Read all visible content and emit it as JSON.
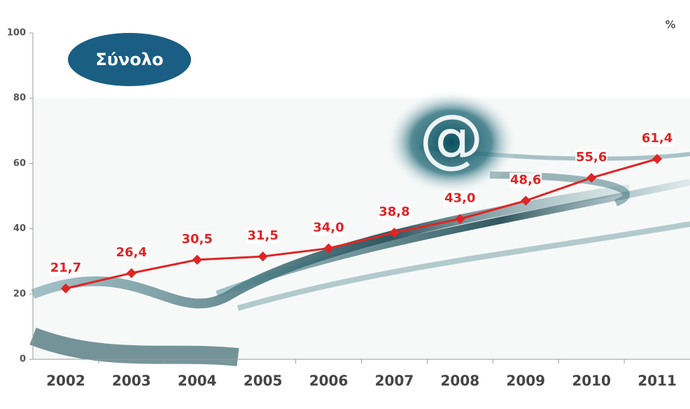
{
  "chart_data": {
    "type": "line",
    "title": "Σύνολο",
    "y_unit": "%",
    "categories": [
      "2002",
      "2003",
      "2004",
      "2005",
      "2006",
      "2007",
      "2008",
      "2009",
      "2010",
      "2011"
    ],
    "series": [
      {
        "color": "#e02424",
        "values": [
          21.7,
          26.4,
          30.5,
          31.5,
          34.0,
          38.8,
          43.0,
          48.6,
          55.6,
          61.4
        ],
        "value_labels": [
          "21,7",
          "26,4",
          "30,5",
          "31,5",
          "34,0",
          "38,8",
          "43,0",
          "48,6",
          "55,6",
          "61,4"
        ]
      }
    ],
    "ylim": [
      0,
      100
    ],
    "yticks": [
      0,
      20,
      40,
      60,
      80,
      100
    ]
  }
}
